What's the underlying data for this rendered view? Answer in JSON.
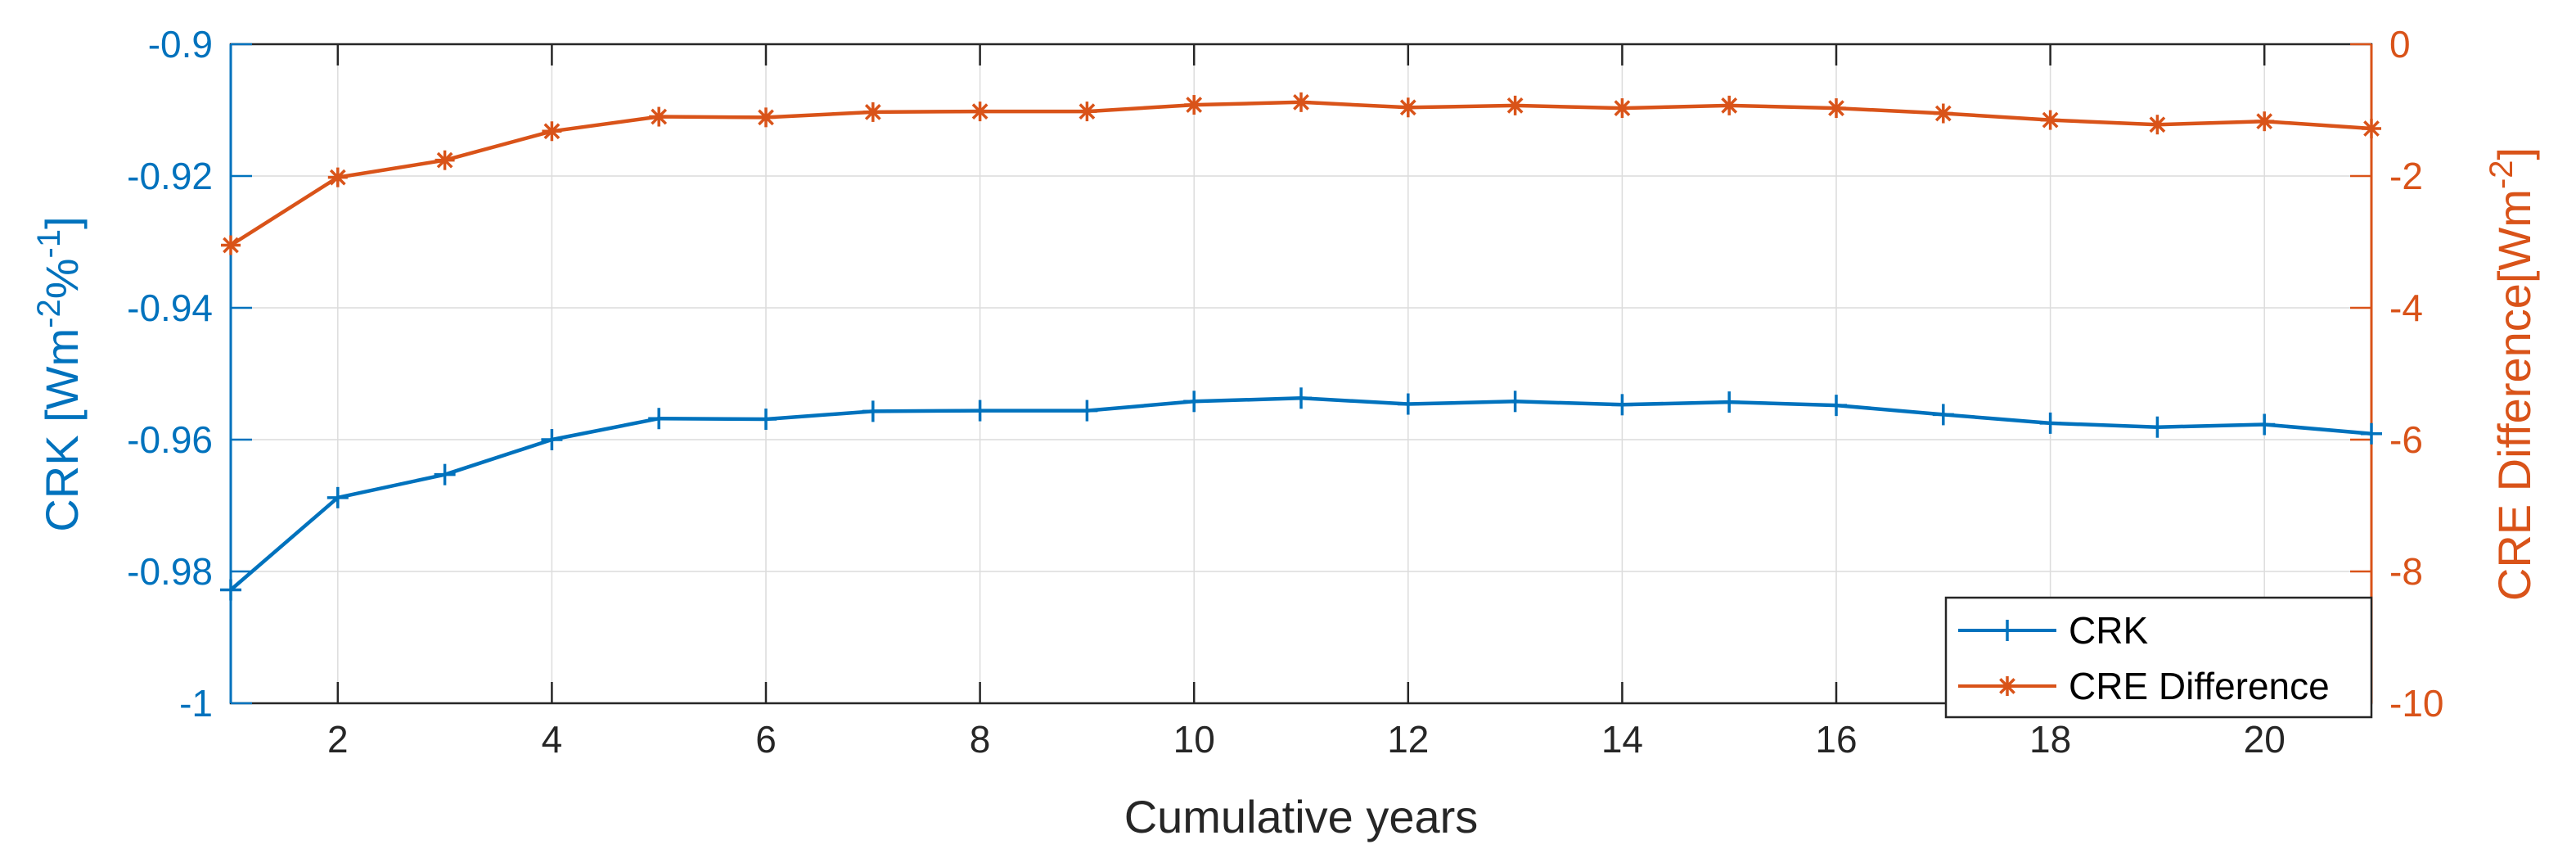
{
  "colors": {
    "crk": "#0072BD",
    "cre": "#D95319",
    "axis": "#262626",
    "grid": "#dcdcdc"
  },
  "labels": {
    "xlabel": "Cumulative years",
    "ylabel_left_main": "CRK [Wm",
    "ylabel_left_sup1": "-2",
    "ylabel_left_mid": "%",
    "ylabel_left_sup2": "-1",
    "ylabel_left_end": "]",
    "ylabel_right_main": "CRE Difference[Wm",
    "ylabel_right_sup": "-2",
    "ylabel_right_end": "]"
  },
  "chart_data": {
    "type": "line",
    "x": [
      1,
      2,
      3,
      4,
      5,
      6,
      7,
      8,
      9,
      10,
      11,
      12,
      13,
      14,
      15,
      16,
      17,
      18,
      19,
      20,
      21
    ],
    "xlim": [
      1,
      21
    ],
    "xticks": [
      2,
      4,
      6,
      8,
      10,
      12,
      14,
      16,
      18,
      20
    ],
    "ylim_left": [
      -1,
      -0.9
    ],
    "yticks_left": [
      -1,
      -0.98,
      -0.96,
      -0.94,
      -0.92,
      -0.9
    ],
    "ytick_labels_left": [
      "-1",
      "-0.98",
      "-0.96",
      "-0.94",
      "-0.92",
      "-0.9"
    ],
    "ylim_right": [
      -10,
      0
    ],
    "yticks_right": [
      -10,
      -8,
      -6,
      -4,
      -2,
      0
    ],
    "ytick_labels_right": [
      "-10",
      "-8",
      "-6",
      "-4",
      "-2",
      "0"
    ],
    "grid": true,
    "legend_position": "bottom-right",
    "series": [
      {
        "name": "CRK",
        "axis": "left",
        "marker": "plus",
        "values": [
          -0.9828,
          -0.9688,
          -0.9653,
          -0.96,
          -0.9568,
          -0.9569,
          -0.9557,
          -0.9556,
          -0.9556,
          -0.9542,
          -0.9537,
          -0.9546,
          -0.9542,
          -0.9547,
          -0.9543,
          -0.9548,
          -0.9562,
          -0.9575,
          -0.9581,
          -0.9577,
          -0.9591
        ]
      },
      {
        "name": "CRE Difference",
        "axis": "right",
        "marker": "asterisk",
        "values": [
          -3.05,
          -2.02,
          -1.76,
          -1.32,
          -1.1,
          -1.11,
          -1.03,
          -1.02,
          -1.02,
          -0.92,
          -0.88,
          -0.96,
          -0.93,
          -0.97,
          -0.93,
          -0.97,
          -1.05,
          -1.15,
          -1.22,
          -1.17,
          -1.28
        ]
      }
    ]
  }
}
